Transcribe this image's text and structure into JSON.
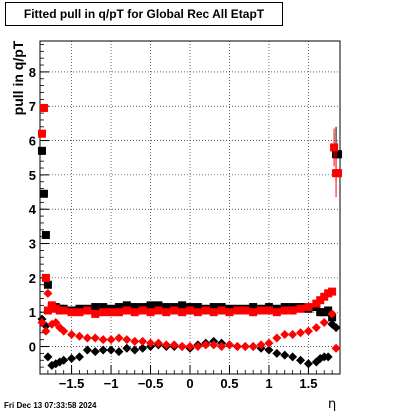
{
  "title": "Fitted pull in q/pT for Global Rec All EtapT",
  "timestamp": "Fri Dec 13 07:33:58 2024",
  "chart_data": {
    "type": "scatter",
    "title": "Fitted pull in q/pT for Global Rec All EtapT",
    "xlabel": "η",
    "ylabel": "pull in q/pT",
    "xlim": [
      -1.9,
      1.9
    ],
    "ylim": [
      -0.8,
      8.9
    ],
    "x_ticks": [
      -1.5,
      -1,
      -0.5,
      0,
      0.5,
      1,
      1.5
    ],
    "x_tick_labels": [
      "−1.5",
      "−1",
      "−0.5",
      "0",
      "0.5",
      "1",
      "1.5"
    ],
    "y_ticks": [
      0,
      1,
      2,
      3,
      4,
      5,
      6,
      7,
      8
    ],
    "y_tick_labels": [
      "0",
      "1",
      "2",
      "3",
      "4",
      "5",
      "6",
      "7",
      "8"
    ],
    "grid": true,
    "series": [
      {
        "color": "#000000",
        "marker": "square",
        "x": [
          -1.875,
          -1.85,
          -1.825,
          -1.8,
          -1.75,
          -1.7,
          -1.65,
          -1.6,
          -1.5,
          -1.4,
          -1.3,
          -1.2,
          -1.1,
          -1.0,
          -0.9,
          -0.8,
          -0.7,
          -0.6,
          -0.5,
          -0.4,
          -0.3,
          -0.2,
          -0.1,
          0.0,
          0.1,
          0.2,
          0.3,
          0.4,
          0.5,
          0.6,
          0.7,
          0.8,
          0.9,
          1.0,
          1.1,
          1.2,
          1.3,
          1.4,
          1.5,
          1.6,
          1.65,
          1.7,
          1.75,
          1.8,
          1.85,
          1.875
        ],
        "y": [
          5.7,
          4.45,
          3.25,
          1.8,
          1.15,
          1.15,
          1.1,
          1.1,
          1.05,
          1.1,
          1.1,
          1.15,
          1.15,
          1.1,
          1.15,
          1.2,
          1.15,
          1.15,
          1.2,
          1.2,
          1.15,
          1.15,
          1.2,
          1.15,
          1.15,
          1.1,
          1.15,
          1.15,
          1.1,
          1.1,
          1.1,
          1.15,
          1.1,
          1.15,
          1.1,
          1.15,
          1.15,
          1.15,
          1.1,
          1.15,
          1.0,
          1.0,
          1.05,
          0.85,
          5.6,
          5.6
        ],
        "errors": [
          0,
          0,
          0,
          0,
          0,
          0,
          0,
          0,
          0,
          0,
          0,
          0,
          0,
          0,
          0,
          0,
          0,
          0,
          0,
          0,
          0,
          0,
          0,
          0,
          0,
          0,
          0,
          0,
          0,
          0,
          0,
          0,
          0,
          0,
          0,
          0,
          0,
          0,
          0,
          0,
          0,
          0,
          0,
          0,
          0.8,
          0
        ]
      },
      {
        "color": "#000000",
        "marker": "diamond",
        "x": [
          -1.875,
          -1.825,
          -1.8,
          -1.75,
          -1.7,
          -1.65,
          -1.6,
          -1.5,
          -1.4,
          -1.3,
          -1.2,
          -1.1,
          -1.0,
          -0.9,
          -0.8,
          -0.7,
          -0.6,
          -0.5,
          -0.4,
          -0.3,
          -0.2,
          -0.1,
          0.0,
          0.1,
          0.2,
          0.3,
          0.4,
          0.5,
          0.6,
          0.7,
          0.8,
          0.9,
          1.0,
          1.1,
          1.2,
          1.3,
          1.4,
          1.5,
          1.6,
          1.65,
          1.7,
          1.75,
          1.8,
          1.85
        ],
        "y": [
          0.8,
          0.6,
          -0.3,
          -0.55,
          -0.5,
          -0.45,
          -0.4,
          -0.35,
          -0.3,
          -0.1,
          -0.15,
          -0.1,
          -0.1,
          -0.15,
          -0.05,
          -0.1,
          -0.05,
          0.0,
          0.05,
          0.0,
          0.0,
          0.0,
          -0.05,
          0.05,
          0.1,
          0.15,
          0.1,
          0.05,
          0.0,
          0.0,
          0.0,
          -0.05,
          -0.1,
          -0.2,
          -0.25,
          -0.3,
          -0.4,
          -0.5,
          -0.45,
          -0.35,
          -0.3,
          -0.3,
          0.65,
          0.55
        ],
        "errors": [
          0,
          0,
          0,
          0,
          0,
          0,
          0,
          0,
          0,
          0,
          0,
          0,
          0,
          0,
          0,
          0,
          0,
          0,
          0,
          0,
          0,
          0,
          0,
          0,
          0,
          0,
          0,
          0,
          0,
          0,
          0,
          0,
          0,
          0,
          0,
          0,
          0,
          0,
          0,
          0,
          0,
          0,
          0,
          0
        ]
      },
      {
        "color": "#ff0000",
        "marker": "square",
        "x": [
          -1.875,
          -1.85,
          -1.825,
          -1.8,
          -1.75,
          -1.7,
          -1.65,
          -1.6,
          -1.5,
          -1.4,
          -1.3,
          -1.2,
          -1.1,
          -1.0,
          -0.9,
          -0.8,
          -0.7,
          -0.6,
          -0.5,
          -0.4,
          -0.3,
          -0.2,
          -0.1,
          0.0,
          0.1,
          0.2,
          0.3,
          0.4,
          0.5,
          0.6,
          0.7,
          0.8,
          0.9,
          1.0,
          1.1,
          1.2,
          1.3,
          1.4,
          1.5,
          1.6,
          1.65,
          1.7,
          1.75,
          1.8,
          1.825,
          1.85,
          1.875
        ],
        "y": [
          6.2,
          6.95,
          2.0,
          1.05,
          1.2,
          1.1,
          1.05,
          1.05,
          1.0,
          1.0,
          1.05,
          0.95,
          1.0,
          1.0,
          1.0,
          1.05,
          1.0,
          1.05,
          1.0,
          1.05,
          1.0,
          1.05,
          1.0,
          1.05,
          1.0,
          1.05,
          1.0,
          1.05,
          1.0,
          1.05,
          1.05,
          1.0,
          1.05,
          1.05,
          1.0,
          1.05,
          1.05,
          1.1,
          1.15,
          1.25,
          1.35,
          1.45,
          1.55,
          1.6,
          5.8,
          5.05,
          5.05
        ],
        "errors": [
          0,
          0,
          0,
          0,
          0,
          0,
          0,
          0,
          0,
          0,
          0,
          0,
          0,
          0,
          0,
          0,
          0,
          0,
          0,
          0,
          0,
          0,
          0,
          0,
          0,
          0,
          0,
          0,
          0,
          0,
          0,
          0,
          0,
          0,
          0,
          0,
          0,
          0,
          0,
          0,
          0,
          0,
          0,
          0,
          0.55,
          0.7,
          0
        ]
      },
      {
        "color": "#ff0000",
        "marker": "diamond",
        "x": [
          -1.875,
          -1.825,
          -1.8,
          -1.75,
          -1.7,
          -1.65,
          -1.6,
          -1.5,
          -1.4,
          -1.3,
          -1.2,
          -1.1,
          -1.0,
          -0.9,
          -0.8,
          -0.7,
          -0.6,
          -0.5,
          -0.4,
          -0.3,
          -0.2,
          -0.1,
          0.0,
          0.1,
          0.2,
          0.3,
          0.4,
          0.5,
          0.6,
          0.7,
          0.8,
          0.9,
          1.0,
          1.1,
          1.2,
          1.3,
          1.4,
          1.5,
          1.6,
          1.7,
          1.8,
          1.85
        ],
        "y": [
          0.7,
          0.45,
          1.55,
          0.65,
          0.7,
          0.55,
          0.45,
          0.35,
          0.3,
          0.25,
          0.25,
          0.2,
          0.2,
          0.25,
          0.2,
          0.15,
          0.15,
          0.1,
          0.1,
          0.05,
          0.05,
          0.0,
          0.0,
          0.0,
          0.05,
          0.05,
          0.0,
          0.05,
          0.0,
          0.0,
          0.0,
          0.05,
          0.1,
          0.25,
          0.35,
          0.35,
          0.4,
          0.45,
          0.55,
          0.7,
          0.95,
          -0.05
        ],
        "errors": [
          0,
          0,
          0,
          0,
          0,
          0,
          0,
          0,
          0,
          0,
          0,
          0,
          0,
          0,
          0,
          0,
          0,
          0,
          0,
          0,
          0,
          0,
          0,
          0,
          0,
          0,
          0,
          0,
          0,
          0,
          0,
          0,
          0,
          0,
          0,
          0,
          0,
          0,
          0,
          0,
          0,
          0
        ]
      }
    ]
  }
}
